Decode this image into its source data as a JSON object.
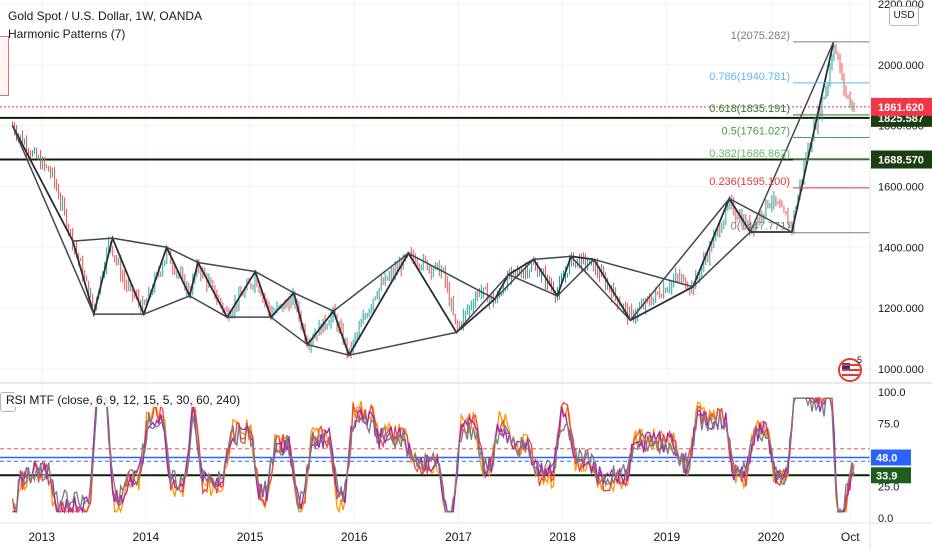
{
  "header": {
    "symbol_title": "Gold Spot / U.S. Dollar, 1W, OANDA",
    "indicator_label": "Harmonic Patterns (7)"
  },
  "currency_label": "USD",
  "rsi": {
    "title": "RSI MTF (close, 6, 9, 12, 15, 5, 30, 60, 240)",
    "axis_ticks": [
      "100.0",
      "75.0",
      "25.0",
      "0.0"
    ],
    "badges": [
      {
        "value": 48.0,
        "label": "48.0",
        "color": "#2962ff"
      },
      {
        "value": 33.9,
        "label": "33.9",
        "color": "#1b5e20"
      }
    ],
    "levels": [
      {
        "value": 55,
        "color": "#ef5350",
        "style": "dashed"
      },
      {
        "value": 45,
        "color": "#2962ff",
        "style": "dashed"
      }
    ]
  },
  "events_badge": {
    "icon": "us-flag-icon",
    "count": "5"
  },
  "chart_data": {
    "type": "line",
    "title": "Gold Spot / U.S. Dollar, 1W, OANDA",
    "price_axis": {
      "ticks": [
        "2200.000",
        "2000.000",
        "1800.000",
        "1600.000",
        "1400.000",
        "1200.000",
        "1000.000"
      ],
      "ylim": [
        970,
        2200
      ]
    },
    "time_axis": {
      "ticks": [
        "2013",
        "2014",
        "2015",
        "2016",
        "2017",
        "2018",
        "2019",
        "2020",
        "Oct"
      ],
      "xlim": [
        2012.6,
        2020.95
      ]
    },
    "price_series_key_points": [
      {
        "x": 2012.72,
        "y": 1800
      },
      {
        "x": 2012.9,
        "y": 1710
      },
      {
        "x": 2013.1,
        "y": 1640
      },
      {
        "x": 2013.3,
        "y": 1420
      },
      {
        "x": 2013.5,
        "y": 1200
      },
      {
        "x": 2013.65,
        "y": 1420
      },
      {
        "x": 2013.8,
        "y": 1280
      },
      {
        "x": 2013.98,
        "y": 1200
      },
      {
        "x": 2014.2,
        "y": 1380
      },
      {
        "x": 2014.42,
        "y": 1250
      },
      {
        "x": 2014.5,
        "y": 1340
      },
      {
        "x": 2014.78,
        "y": 1180
      },
      {
        "x": 2015.05,
        "y": 1300
      },
      {
        "x": 2015.2,
        "y": 1180
      },
      {
        "x": 2015.42,
        "y": 1230
      },
      {
        "x": 2015.55,
        "y": 1090
      },
      {
        "x": 2015.8,
        "y": 1180
      },
      {
        "x": 2015.95,
        "y": 1050
      },
      {
        "x": 2016.2,
        "y": 1250
      },
      {
        "x": 2016.52,
        "y": 1370
      },
      {
        "x": 2016.85,
        "y": 1320
      },
      {
        "x": 2016.98,
        "y": 1130
      },
      {
        "x": 2017.2,
        "y": 1260
      },
      {
        "x": 2017.35,
        "y": 1220
      },
      {
        "x": 2017.48,
        "y": 1300
      },
      {
        "x": 2017.72,
        "y": 1340
      },
      {
        "x": 2017.95,
        "y": 1250
      },
      {
        "x": 2018.08,
        "y": 1360
      },
      {
        "x": 2018.3,
        "y": 1340
      },
      {
        "x": 2018.65,
        "y": 1170
      },
      {
        "x": 2019.1,
        "y": 1300
      },
      {
        "x": 2019.25,
        "y": 1270
      },
      {
        "x": 2019.6,
        "y": 1540
      },
      {
        "x": 2019.8,
        "y": 1460
      },
      {
        "x": 2020.0,
        "y": 1560
      },
      {
        "x": 2020.2,
        "y": 1470
      },
      {
        "x": 2020.35,
        "y": 1720
      },
      {
        "x": 2020.55,
        "y": 1950
      },
      {
        "x": 2020.6,
        "y": 2075
      },
      {
        "x": 2020.72,
        "y": 1900
      },
      {
        "x": 2020.8,
        "y": 1861
      }
    ],
    "fib_levels": [
      {
        "label": "1(2075.282)",
        "value": 2075.282,
        "color": "#787b86"
      },
      {
        "label": "0.786(1940.781)",
        "value": 1940.781,
        "color": "#64b5f6"
      },
      {
        "label": "0.618(1835.191)",
        "value": 1835.191,
        "color": "#2e7d32"
      },
      {
        "label": "0.5(1761.027)",
        "value": 1761.027,
        "color": "#43a047"
      },
      {
        "label": "0.382(1686.862)",
        "value": 1686.862,
        "color": "#66bb6a"
      },
      {
        "label": "0.236(1595.100)",
        "value": 1595.1,
        "color": "#e53935"
      },
      {
        "label": "0(1447.771)",
        "value": 1447.771,
        "color": "#787b86"
      }
    ],
    "horizontal_levels": [
      {
        "value": 1825.587,
        "label": "1825.587",
        "color": "#1b3d12"
      },
      {
        "value": 1688.57,
        "label": "1688.570",
        "color": "#1b3d12"
      }
    ],
    "last_price": {
      "value": 1861.62,
      "label": "1861.620",
      "color": "#f23645"
    },
    "harmonic_points": [
      [
        2012.72,
        1800
      ],
      [
        2013.3,
        1420
      ],
      [
        2013.5,
        1180
      ],
      [
        2013.68,
        1430
      ],
      [
        2013.98,
        1180
      ],
      [
        2014.2,
        1400
      ],
      [
        2014.42,
        1240
      ],
      [
        2014.5,
        1350
      ],
      [
        2014.78,
        1170
      ],
      [
        2015.05,
        1320
      ],
      [
        2015.2,
        1170
      ],
      [
        2015.42,
        1250
      ],
      [
        2015.55,
        1080
      ],
      [
        2015.8,
        1190
      ],
      [
        2015.95,
        1045
      ],
      [
        2016.52,
        1380
      ],
      [
        2016.98,
        1120
      ],
      [
        2017.35,
        1230
      ],
      [
        2017.48,
        1310
      ],
      [
        2017.72,
        1360
      ],
      [
        2017.95,
        1240
      ],
      [
        2018.08,
        1370
      ],
      [
        2018.3,
        1360
      ],
      [
        2018.65,
        1160
      ],
      [
        2019.25,
        1270
      ],
      [
        2019.6,
        1560
      ],
      [
        2019.8,
        1450
      ],
      [
        2020.2,
        1450
      ],
      [
        2020.6,
        2075
      ]
    ],
    "rsi_series": [
      {
        "name": "6",
        "color": "#ff9800"
      },
      {
        "name": "9",
        "color": "#f44336"
      },
      {
        "name": "12",
        "color": "#9c27b0"
      },
      {
        "name": "15",
        "color": "#787b86"
      }
    ],
    "rsi_ylim": [
      0,
      100
    ],
    "grid": true
  }
}
